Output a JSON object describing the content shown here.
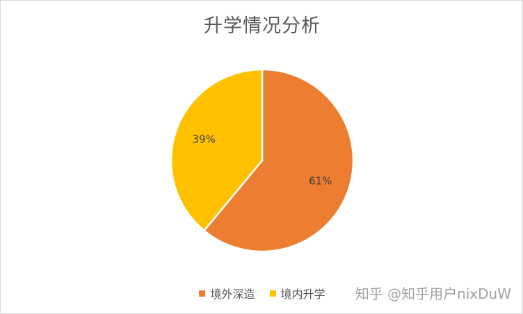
{
  "chart_data": {
    "type": "pie",
    "title": "升学情况分析",
    "categories": [
      "境外深造",
      "境内升学"
    ],
    "values": [
      61,
      39
    ],
    "labels": [
      "61%",
      "39%"
    ],
    "colors": [
      "#ED7D31",
      "#FFC000"
    ],
    "legend": "bottom"
  },
  "watermark": "知乎 @知乎用户nixDuW"
}
